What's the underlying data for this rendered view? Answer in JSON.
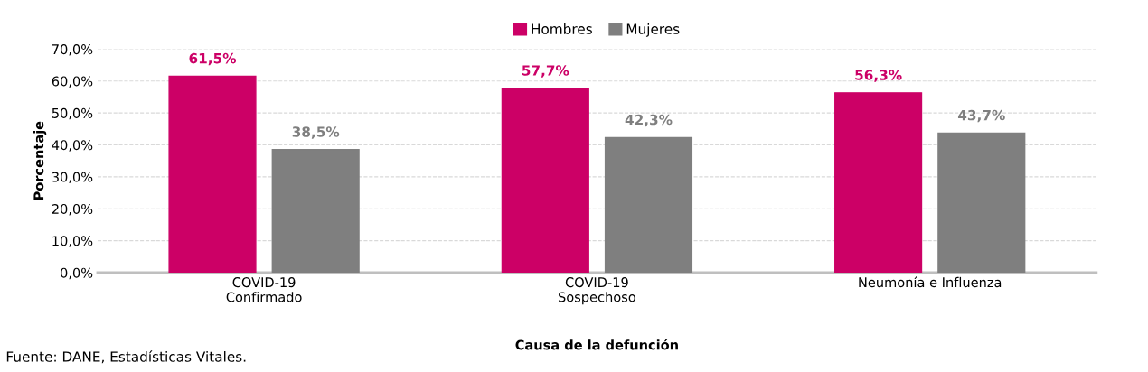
{
  "chart_data": {
    "type": "bar",
    "xlabel": "Causa de la defunción",
    "ylabel": "Porcentaje",
    "categories": [
      "COVID-19\nConfirmado",
      "COVID-19\nSospechoso",
      "Neumonía e Influenza"
    ],
    "series": [
      {
        "name": "Hombres",
        "color": "#cc0066",
        "values": [
          61.5,
          57.7,
          56.3
        ],
        "value_labels": [
          "61,5%",
          "57,7%",
          "56,3%"
        ]
      },
      {
        "name": "Mujeres",
        "color": "#7f7f7f",
        "values": [
          38.5,
          42.3,
          43.7
        ],
        "value_labels": [
          "38,5%",
          "42,3%",
          "43,7%"
        ]
      }
    ],
    "ylim": [
      0,
      70
    ],
    "yticks": [
      {
        "value": 0,
        "label": "0,0%"
      },
      {
        "value": 10,
        "label": "10,0%"
      },
      {
        "value": 20,
        "label": "20,0%"
      },
      {
        "value": 30,
        "label": "30,0%"
      },
      {
        "value": 40,
        "label": "40,0%"
      },
      {
        "value": 50,
        "label": "50,0%"
      },
      {
        "value": 60,
        "label": "60,0%"
      },
      {
        "value": 70,
        "label": "70,0%"
      }
    ],
    "grid": "y",
    "legend": "top",
    "annotations": [
      "Fuente: DANE, Estadísticas Vitales."
    ]
  }
}
